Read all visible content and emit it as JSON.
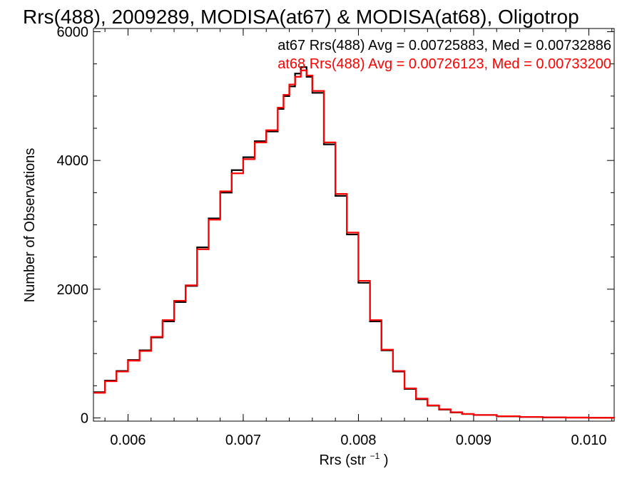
{
  "chart_data": {
    "type": "line",
    "title": "Rrs(488), 2009289, MODISA(at67) & MODISA(at68), Oligotrop",
    "xlabel": "Rrs (str",
    "xlabel_superscript": "−1",
    "xlabel_suffix": ")",
    "ylabel": "Number of Observations",
    "xlim": [
      0.0057,
      0.01022
    ],
    "ylim": [
      -50,
      6050
    ],
    "x_ticks": [
      {
        "value": 0.006,
        "label": "0.006"
      },
      {
        "value": 0.007,
        "label": "0.007"
      },
      {
        "value": 0.008,
        "label": "0.008"
      },
      {
        "value": 0.009,
        "label": "0.009"
      },
      {
        "value": 0.01,
        "label": "0.010"
      }
    ],
    "y_ticks": [
      {
        "value": 0,
        "label": "0"
      },
      {
        "value": 2000,
        "label": "2000"
      },
      {
        "value": 4000,
        "label": "4000"
      },
      {
        "value": 6000,
        "label": "6000"
      }
    ],
    "grid": false,
    "step": true,
    "annotations": [
      {
        "text": "at67 Rrs(488) Avg = 0.00725883, Med = 0.00732886",
        "color": "#000000"
      },
      {
        "text": "at68 Rrs(488) Avg = 0.00726123, Med = 0.00733200",
        "color": "#ff0000"
      }
    ],
    "series": [
      {
        "color": "#000000",
        "x": [
          0.0057,
          0.0058,
          0.0059,
          0.006,
          0.0061,
          0.0062,
          0.0063,
          0.0064,
          0.0065,
          0.0066,
          0.0067,
          0.0068,
          0.0069,
          0.007,
          0.0071,
          0.0072,
          0.0073,
          0.00735,
          0.0074,
          0.00745,
          0.0075,
          0.00755,
          0.0076,
          0.0077,
          0.0078,
          0.0079,
          0.008,
          0.0081,
          0.0082,
          0.0083,
          0.0084,
          0.0085,
          0.0086,
          0.0087,
          0.0088,
          0.0089,
          0.009,
          0.0092,
          0.0094,
          0.0096,
          0.0098,
          0.01,
          0.01022
        ],
        "values": [
          400,
          580,
          730,
          900,
          1050,
          1250,
          1500,
          1800,
          2050,
          2650,
          3100,
          3500,
          3850,
          4050,
          4300,
          4450,
          4800,
          5000,
          5150,
          5350,
          5450,
          5300,
          5050,
          4250,
          3450,
          2850,
          2100,
          1500,
          1050,
          720,
          450,
          290,
          190,
          130,
          85,
          60,
          45,
          25,
          15,
          8,
          5,
          3,
          2
        ]
      },
      {
        "color": "#ff0000",
        "x": [
          0.0057,
          0.0058,
          0.0059,
          0.006,
          0.0061,
          0.0062,
          0.0063,
          0.0064,
          0.0065,
          0.0066,
          0.0067,
          0.0068,
          0.0069,
          0.007,
          0.0071,
          0.0072,
          0.0073,
          0.00735,
          0.0074,
          0.00745,
          0.0075,
          0.00755,
          0.0076,
          0.0077,
          0.0078,
          0.0079,
          0.008,
          0.0081,
          0.0082,
          0.0083,
          0.0084,
          0.0085,
          0.0086,
          0.0087,
          0.0088,
          0.0089,
          0.009,
          0.0092,
          0.0094,
          0.0096,
          0.0098,
          0.01,
          0.01022
        ],
        "values": [
          390,
          570,
          720,
          890,
          1040,
          1260,
          1520,
          1820,
          2060,
          2620,
          3080,
          3520,
          3800,
          4020,
          4280,
          4470,
          4820,
          5020,
          5180,
          5300,
          5400,
          5320,
          5080,
          4280,
          3480,
          2880,
          2130,
          1520,
          1060,
          730,
          460,
          300,
          195,
          135,
          88,
          62,
          46,
          26,
          16,
          9,
          5,
          3,
          2
        ]
      }
    ]
  }
}
